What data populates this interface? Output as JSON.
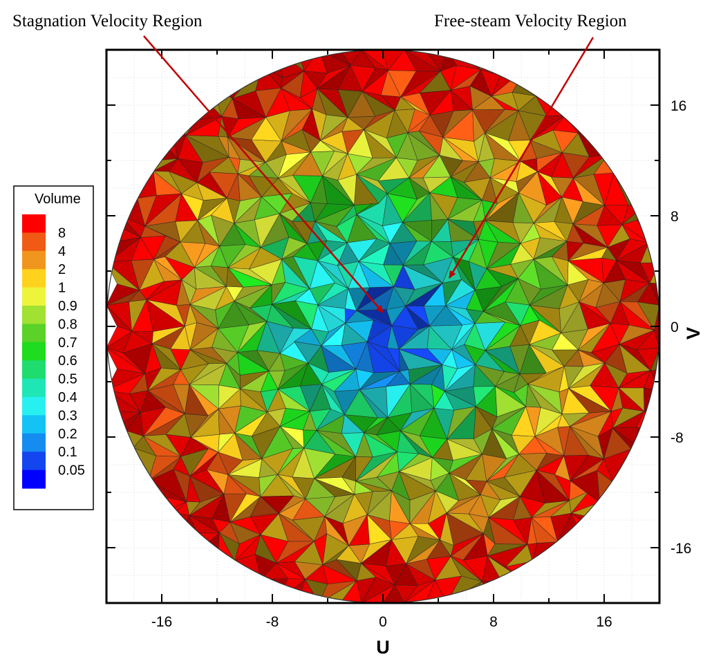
{
  "chart_data": {
    "type": "mesh-contour",
    "xlabel": "U",
    "ylabel": "V",
    "xlim": [
      -20,
      20
    ],
    "ylim": [
      -20,
      20
    ],
    "domain_radius": 20,
    "x_ticks": [
      -16,
      -8,
      0,
      8,
      16
    ],
    "y_ticks": [
      16,
      8,
      0,
      -8,
      -16
    ],
    "grid": true,
    "legend": {
      "title": "Volume",
      "position": "left",
      "levels": [
        {
          "label": "8",
          "color": "#ff0000"
        },
        {
          "label": "4",
          "color": "#f05a14"
        },
        {
          "label": "2",
          "color": "#f0961e"
        },
        {
          "label": "1",
          "color": "#ffd21e"
        },
        {
          "label": "0.9",
          "color": "#ecf53c"
        },
        {
          "label": "0.8",
          "color": "#a0e132"
        },
        {
          "label": "0.7",
          "color": "#5ad228"
        },
        {
          "label": "0.6",
          "color": "#1edc1e"
        },
        {
          "label": "0.5",
          "color": "#1edc6e"
        },
        {
          "label": "0.4",
          "color": "#1ee6b4"
        },
        {
          "label": "0.3",
          "color": "#28f0f0"
        },
        {
          "label": "0.2",
          "color": "#14c3f5"
        },
        {
          "label": "0.1",
          "color": "#148cf0"
        },
        {
          "label": "0.05",
          "color": "#1446f0"
        },
        {
          "label": "",
          "color": "#0000ff"
        }
      ]
    },
    "annotations": [
      {
        "text": "Stagnation Velocity Region",
        "point": [
          0,
          1
        ]
      },
      {
        "text": "Free-steam Velocity Region",
        "point": [
          4.8,
          3.5
        ]
      }
    ],
    "arrow_color": "#c00000"
  }
}
